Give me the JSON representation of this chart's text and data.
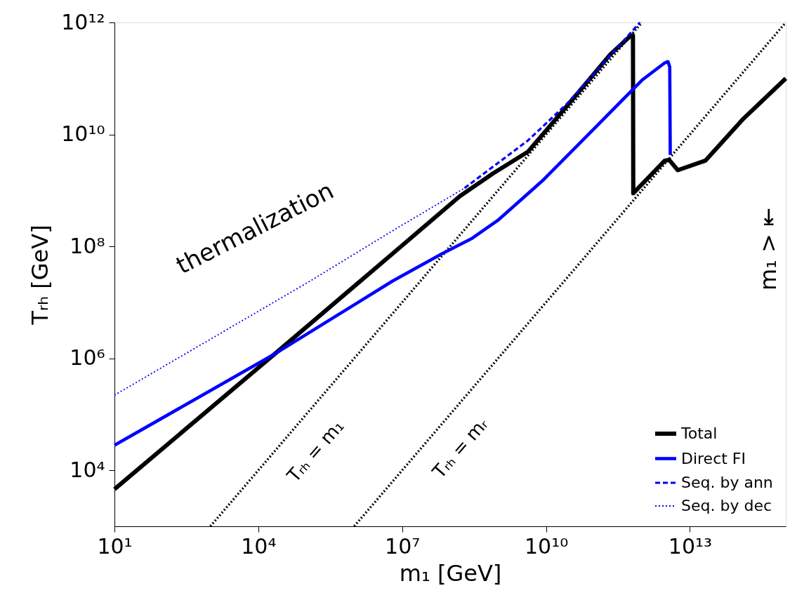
{
  "chart_data": {
    "type": "line",
    "xlabel": "m₁ [GeV]",
    "ylabel": "Tᵣₕ [GeV]",
    "log": "xy",
    "grid": false,
    "legend": "bottom right",
    "marker": "none",
    "xlim": [
      10,
      1000000000000000.0
    ],
    "ylim": [
      1000,
      1000000000000.0
    ],
    "xticks": [
      {
        "value": 10,
        "label": "10¹"
      },
      {
        "value": 10000.0,
        "label": "10⁴"
      },
      {
        "value": 10000000.0,
        "label": "10⁷"
      },
      {
        "value": 10000000000.0,
        "label": "10¹⁰"
      },
      {
        "value": 10000000000000.0,
        "label": "10¹³"
      }
    ],
    "yticks": [
      {
        "value": 10000.0,
        "label": "10⁴"
      },
      {
        "value": 1000000.0,
        "label": "10⁶"
      },
      {
        "value": 100000000.0,
        "label": "10⁸"
      },
      {
        "value": 10000000000.0,
        "label": "10¹⁰"
      },
      {
        "value": 1000000000000.0,
        "label": "10¹²"
      }
    ],
    "series": [
      {
        "name": "Total",
        "color": "#000000",
        "line_style": "solid",
        "x": [
          10,
          22000.0,
          6300000.0,
          160000000.0,
          780000000.0,
          4200000000.0,
          28000000000.0,
          220000000000.0,
          560000000000.0,
          650000000000.0,
          660000000000.0,
          3000000000000.0,
          3700000000000.0,
          5600000000000.0,
          21000000000000.0,
          130000000000000.0,
          1000000000000000.0
        ],
        "values": [
          4600.0,
          1200000.0,
          74000000.0,
          790000000.0,
          2000000000.0,
          4900000000.0,
          33000000000.0,
          270000000000.0,
          560000000000.0,
          590000000000.0,
          890000000.0,
          3400000000.0,
          3500000000.0,
          2300000000.0,
          3400000000.0,
          19000000000.0,
          100000000000.0
        ]
      },
      {
        "name": "Direct FI",
        "color": "#0000ff",
        "line_style": "solid",
        "x": [
          10,
          22000.0,
          6300000.0,
          68000000.0,
          290000000.0,
          980000000.0,
          8500000000.0,
          95000000000.0,
          1000000000000.0,
          3000000000000.0,
          3500000000000.0,
          3800000000000.0,
          3900000000000.0
        ],
        "values": [
          28000.0,
          1200000.0,
          24000000.0,
          74000000.0,
          140000000.0,
          290000000.0,
          1500000000.0,
          12000000000.0,
          93000000000.0,
          190000000000.0,
          200000000000.0,
          160000000000.0,
          4300000000.0
        ]
      },
      {
        "name": "Seq. by ann",
        "color": "#0000ff",
        "line_style": "dashed",
        "x": [
          200000000.0,
          4200000000.0,
          28000000000.0,
          910000000000.0
        ],
        "values": [
          1100000000.0,
          7800000000.0,
          36000000000.0,
          1000000000000.0
        ]
      },
      {
        "name": "Seq. by dec",
        "color": "#0000ff",
        "line_style": "dotted",
        "x": [
          10,
          120000.0,
          6300000.0,
          200000000.0
        ],
        "values": [
          220000.0,
          24000000.0,
          190000000.0,
          1100000000.0
        ]
      },
      {
        "color": "#000000",
        "line_style": "dotted",
        "x": [
          1000,
          1000000000000.0
        ],
        "values": [
          1000,
          1000000000000.0
        ]
      },
      {
        "color": "#000000",
        "line_style": "dotted",
        "x": [
          1000000.0,
          1000000000000000.0
        ],
        "values": [
          1000,
          1000000000000.0
        ]
      }
    ],
    "annotations": [
      "thermalization",
      "Tᵣₕ = m₁",
      "Tᵣₕ = mᵣ",
      "m₁ > ⇤"
    ]
  }
}
